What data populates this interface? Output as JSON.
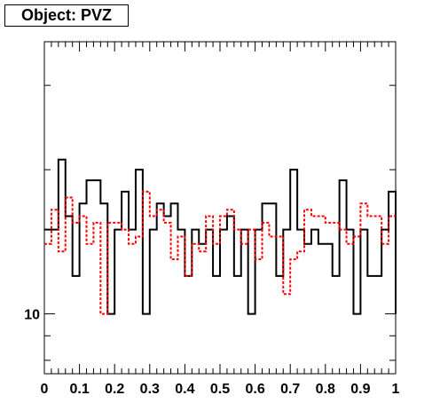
{
  "chart_data": {
    "type": "line",
    "title": "Object: PVZ",
    "xlabel": "",
    "ylabel": "",
    "xlim": [
      0,
      1
    ],
    "ylim": [
      7.5,
      37
    ],
    "yscale": "log",
    "x_tick_labels": [
      "0",
      "0.1",
      "0.2",
      "0.3",
      "0.4",
      "0.5",
      "0.6",
      "0.7",
      "0.8",
      "0.9",
      "1"
    ],
    "y_tick_labels": [
      "10"
    ],
    "bin_edges": [
      0,
      0.02,
      0.04,
      0.06,
      0.08,
      0.1,
      0.12,
      0.14,
      0.16,
      0.18,
      0.2,
      0.22,
      0.24,
      0.26,
      0.28,
      0.3,
      0.32,
      0.34,
      0.36,
      0.38,
      0.4,
      0.42,
      0.44,
      0.46,
      0.48,
      0.5,
      0.52,
      0.54,
      0.56,
      0.58,
      0.6,
      0.62,
      0.64,
      0.66,
      0.68,
      0.7,
      0.72,
      0.74,
      0.76,
      0.78,
      0.8,
      0.82,
      0.84,
      0.86,
      0.88,
      0.9,
      0.92,
      0.94,
      0.96,
      0.98,
      1.0
    ],
    "series": [
      {
        "style": "solid",
        "color": "#000000",
        "values": [
          15,
          15,
          21,
          16,
          12,
          17,
          19,
          19,
          17,
          10,
          15,
          18,
          15,
          20,
          10,
          15,
          17,
          16,
          17,
          15,
          12,
          15,
          14,
          15,
          12,
          15,
          16,
          12,
          15,
          10,
          15,
          17,
          17,
          12,
          15,
          20,
          15,
          14,
          15,
          14,
          14,
          12,
          19,
          15,
          10,
          15,
          12,
          12,
          15,
          18,
          10
        ]
      },
      {
        "style": "dashed",
        "color": "#ff0000",
        "values": [
          14,
          16.5,
          13.5,
          17.5,
          15.5,
          16,
          14,
          15.5,
          10,
          15.5,
          15.5,
          15,
          14,
          14.5,
          18,
          16,
          16.5,
          15.5,
          13,
          14.5,
          12,
          14,
          13.5,
          16,
          14,
          16,
          16.5,
          15,
          14,
          15,
          13,
          15.5,
          14.5,
          14.5,
          11,
          13,
          13.5,
          16.5,
          16,
          16,
          15.5,
          15.5,
          15,
          14,
          14.5,
          17,
          16,
          16,
          14,
          16,
          16
        ]
      }
    ]
  }
}
